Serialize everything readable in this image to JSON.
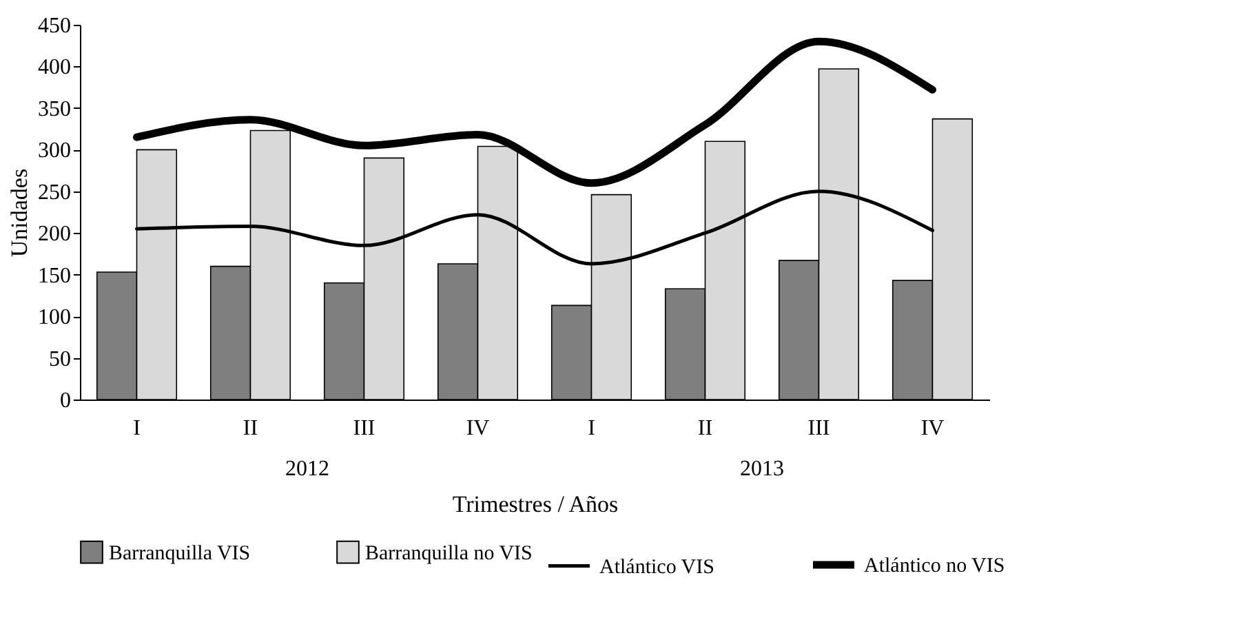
{
  "chart_data": {
    "type": "bar",
    "xlabel": "Trimestres / Años",
    "ylabel": "Unidades",
    "categories": [
      "I",
      "II",
      "III",
      "IV",
      "I",
      "II",
      "III",
      "IV"
    ],
    "series": [
      {
        "name": "Barranquilla VIS",
        "color": "#7f7f7f",
        "values": [
          153,
          160,
          140,
          163,
          113,
          133,
          167,
          143
        ]
      },
      {
        "name": "Barranquilla no VIS",
        "color": "#d9d9d9",
        "values": [
          300,
          323,
          290,
          304,
          246,
          310,
          397,
          337
        ]
      },
      {
        "name": "Atlántico VIS",
        "type": "line",
        "color": "#000000",
        "values": [
          205,
          208,
          185,
          222,
          163,
          200,
          250,
          203
        ]
      },
      {
        "name": "Atlántico no VIS",
        "type": "line",
        "color": "#000000",
        "values": [
          315,
          336,
          305,
          318,
          260,
          330,
          430,
          372
        ]
      }
    ],
    "annotations": [
      "2012",
      "2013"
    ],
    "ylim": [
      0,
      450
    ],
    "yticks": [
      0,
      50,
      100,
      150,
      200,
      250,
      300,
      350,
      400,
      450
    ],
    "grid": false,
    "legend": "bottom"
  }
}
